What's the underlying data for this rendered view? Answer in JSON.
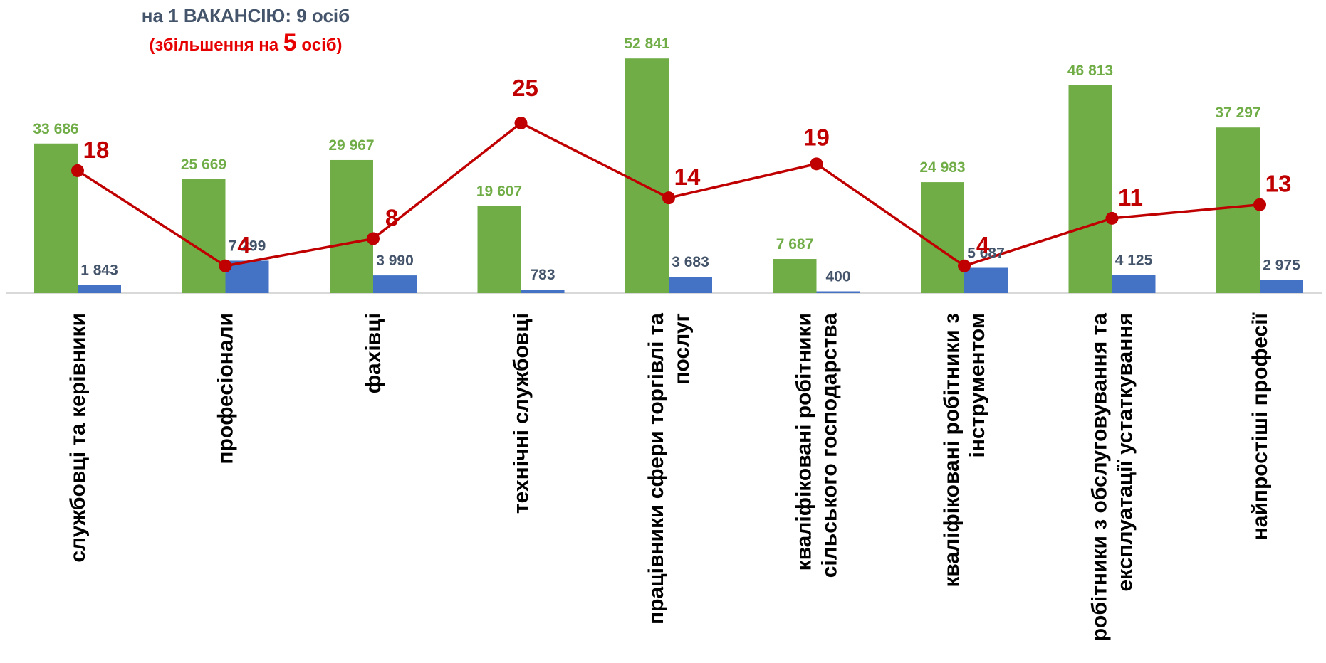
{
  "header": {
    "line1": "на 1 ВАКАНСІЮ: 9 осіб",
    "line2_prefix": "(збільшення на ",
    "line2_number": "5",
    "line2_suffix": " осіб)"
  },
  "chart_data": {
    "type": "bar",
    "categories": [
      [
        "службовці та керівники"
      ],
      [
        "професіонали"
      ],
      [
        "фахівці"
      ],
      [
        "технічні службовці"
      ],
      [
        "працівники сфери торгівлі та",
        "послуг"
      ],
      [
        "кваліфіковані робітники",
        "сільського господарства"
      ],
      [
        "кваліфіковані робітники з",
        "інструментом"
      ],
      [
        "робітники з обслуговування та",
        "експлуатації устаткування"
      ],
      [
        "найпростіші професії"
      ]
    ],
    "series": [
      {
        "type": "bar",
        "color": "#70ad47",
        "values": [
          33686,
          25669,
          29967,
          19607,
          52841,
          7687,
          24983,
          46813,
          37297
        ],
        "labels": [
          "33 686",
          "25 669",
          "29 967",
          "19 607",
          "52 841",
          "7 687",
          "24 983",
          "46 813",
          "37 297"
        ]
      },
      {
        "type": "bar",
        "color": "#4472c4",
        "values": [
          1843,
          7299,
          3990,
          783,
          3683,
          400,
          5687,
          4125,
          2975
        ],
        "labels": [
          "1 843",
          "7 299",
          "3 990",
          "783",
          "3 683",
          "400",
          "5 687",
          "4 125",
          "2 975"
        ]
      },
      {
        "type": "line",
        "color": "#c00000",
        "values": [
          18,
          4,
          8,
          25,
          14,
          19,
          4,
          11,
          13
        ],
        "labels": [
          "18",
          "4",
          "8",
          "25",
          "14",
          "19",
          "4",
          "11",
          "13"
        ]
      }
    ],
    "ylim_bars": [
      0,
      58000
    ],
    "ylim_line": [
      0,
      60
    ],
    "grid": false,
    "legend": "none"
  }
}
